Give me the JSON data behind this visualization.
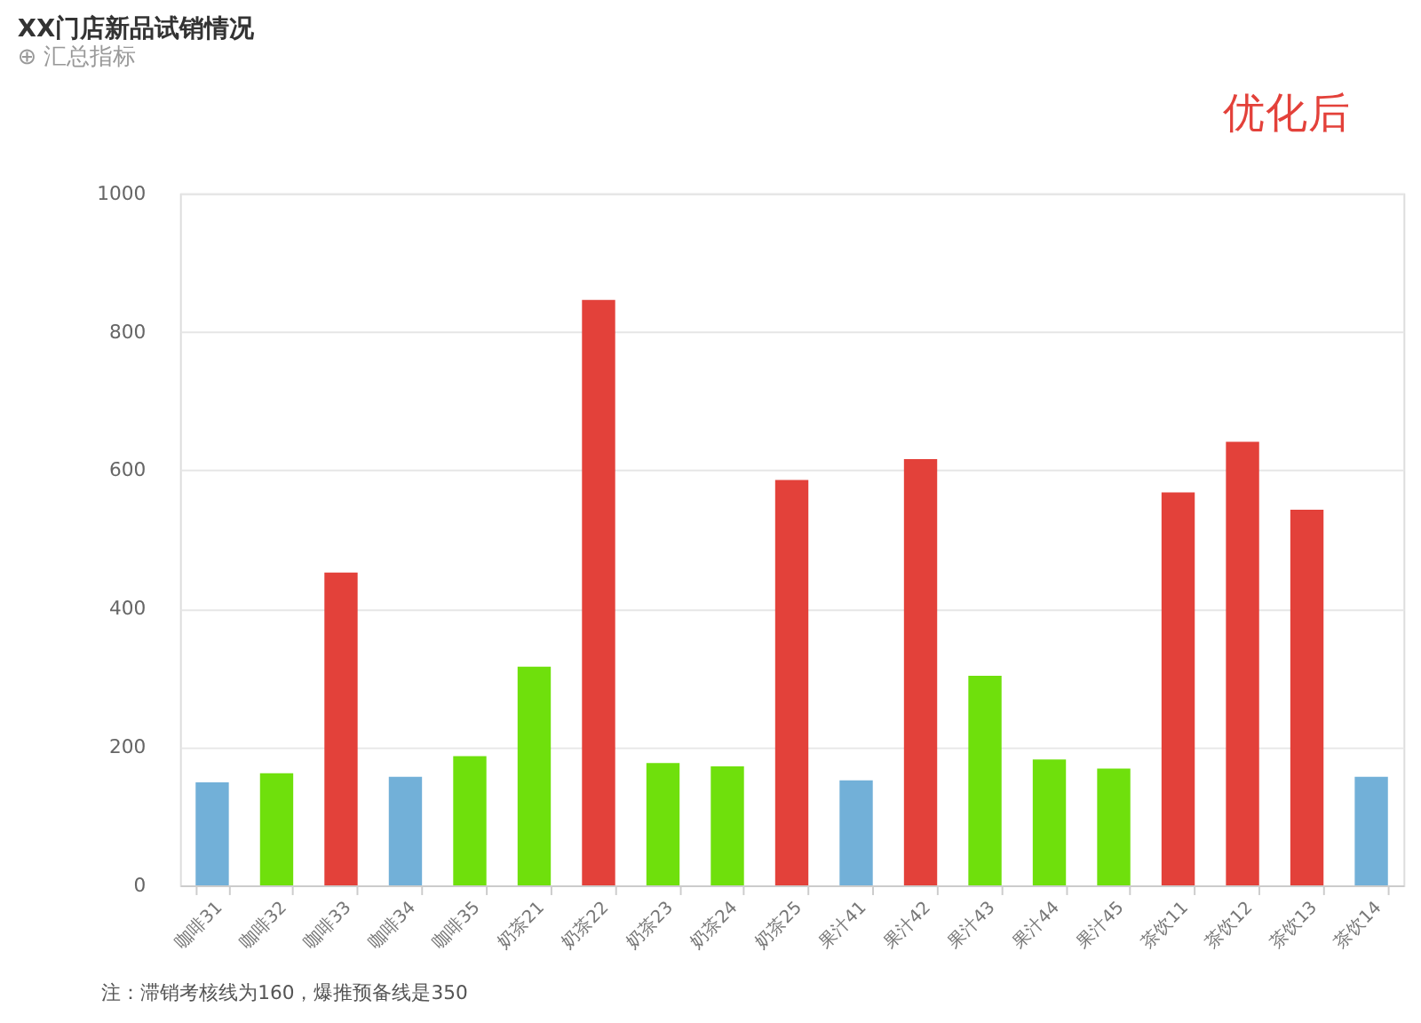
{
  "chart_data": {
    "type": "bar",
    "title": "XX门店新品试销情况",
    "subtitle": "⊕ 汇总指标",
    "categories": [
      "咖啡31",
      "咖啡32",
      "咖啡33",
      "咖啡34",
      "咖啡35",
      "奶茶21",
      "奶茶22",
      "奶茶23",
      "奶茶24",
      "奶茶25",
      "果汁41",
      "果汁42",
      "果汁43",
      "果汁44",
      "果汁45",
      "茶饮11",
      "茶饮12",
      "茶饮13",
      "茶饮14"
    ],
    "values": [
      149,
      162,
      452,
      157,
      187,
      316,
      846,
      177,
      172,
      586,
      152,
      616,
      303,
      182,
      169,
      568,
      641,
      543,
      157
    ],
    "colors": [
      "#72b0d8",
      "#6fe00c",
      "#e3413a",
      "#72b0d8",
      "#6fe00c",
      "#6fe00c",
      "#e3413a",
      "#6fe00c",
      "#6fe00c",
      "#e3413a",
      "#72b0d8",
      "#e3413a",
      "#6fe00c",
      "#6fe00c",
      "#6fe00c",
      "#e3413a",
      "#e3413a",
      "#e3413a",
      "#72b0d8"
    ],
    "ylim": [
      0,
      1000
    ],
    "yticks": [
      0,
      200,
      400,
      600,
      800,
      1000
    ],
    "grid": "y",
    "annotations": [
      "优化后",
      "注：滞销考核线为160，爆推预备线是350"
    ]
  }
}
